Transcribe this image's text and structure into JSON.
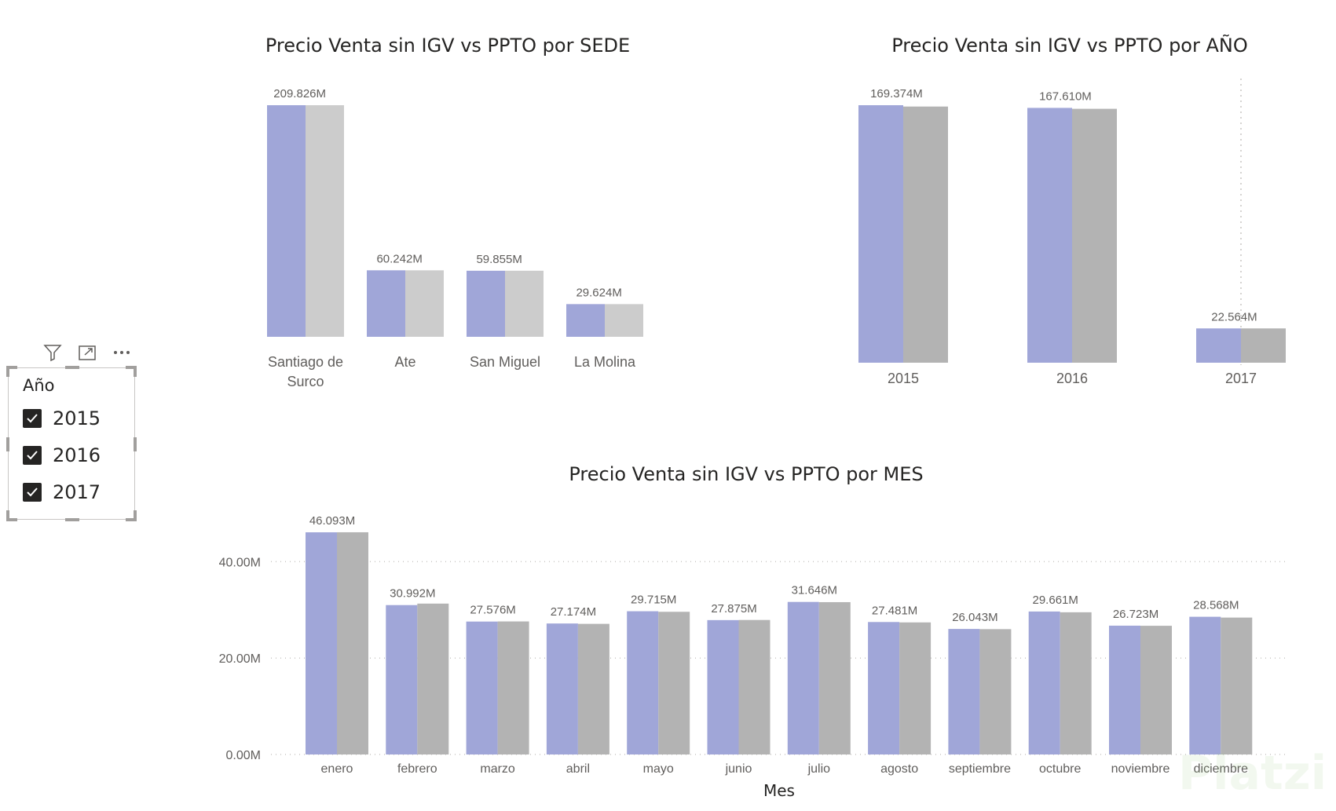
{
  "slicer": {
    "title": "Año",
    "items": [
      {
        "label": "2015",
        "checked": true
      },
      {
        "label": "2016",
        "checked": true
      },
      {
        "label": "2017",
        "checked": true
      }
    ],
    "toolbar_icons": [
      "filter-icon",
      "focus-mode-icon",
      "more-options-icon"
    ]
  },
  "watermark": "Platzi",
  "colors": {
    "venta": "#a0a6d8",
    "ppto_sede": "#cccccc",
    "ppto": "#b3b3b3"
  },
  "chart_data": [
    {
      "type": "bar",
      "title": "Precio Venta sin IGV vs PPTO por SEDE",
      "categories": [
        "Santiago de Surco",
        "Ate",
        "San Miguel",
        "La Molina"
      ],
      "category_lines": [
        [
          "Santiago de",
          "Surco"
        ],
        [
          "Ate"
        ],
        [
          "San Miguel"
        ],
        [
          "La Molina"
        ]
      ],
      "series": [
        {
          "values": [
            209.826,
            60.242,
            59.855,
            29.624
          ]
        },
        {
          "values": [
            209.826,
            60.242,
            59.855,
            29.624
          ]
        }
      ],
      "data_labels": [
        "209.826M",
        "60.242M",
        "59.855M",
        "29.624M"
      ],
      "ylim": [
        0,
        209.826
      ],
      "grid": false
    },
    {
      "type": "bar",
      "title": "Precio Venta sin IGV vs PPTO por AÑO",
      "categories": [
        "2015",
        "2016",
        "2017"
      ],
      "series": [
        {
          "values": [
            169.374,
            167.61,
            22.564
          ]
        },
        {
          "values": [
            168.5,
            167.0,
            22.564
          ]
        }
      ],
      "data_labels": [
        "169.374M",
        "167.610M",
        "22.564M"
      ],
      "ylim": [
        0,
        169.374
      ],
      "grid": false
    },
    {
      "type": "bar",
      "title": "Precio Venta sin IGV vs PPTO por MES",
      "xlabel": "Mes",
      "categories": [
        "enero",
        "febrero",
        "marzo",
        "abril",
        "mayo",
        "junio",
        "julio",
        "agosto",
        "septiembre",
        "octubre",
        "noviembre",
        "diciembre"
      ],
      "series": [
        {
          "values": [
            46.093,
            30.992,
            27.576,
            27.174,
            29.715,
            27.875,
            31.646,
            27.481,
            26.043,
            29.661,
            26.723,
            28.568
          ]
        },
        {
          "values": [
            46.1,
            31.3,
            27.6,
            27.1,
            29.6,
            27.9,
            31.6,
            27.4,
            26.0,
            29.5,
            26.7,
            28.4
          ]
        }
      ],
      "data_labels": [
        "46.093M",
        "30.992M",
        "27.576M",
        "27.174M",
        "29.715M",
        "27.875M",
        "31.646M",
        "27.481M",
        "26.043M",
        "29.661M",
        "26.723M",
        "28.568M"
      ],
      "y_ticks": [
        "0.00M",
        "20.00M",
        "40.00M"
      ],
      "y_tick_values": [
        0,
        20,
        40
      ],
      "ylim": [
        0,
        46.093
      ],
      "grid": true
    }
  ]
}
